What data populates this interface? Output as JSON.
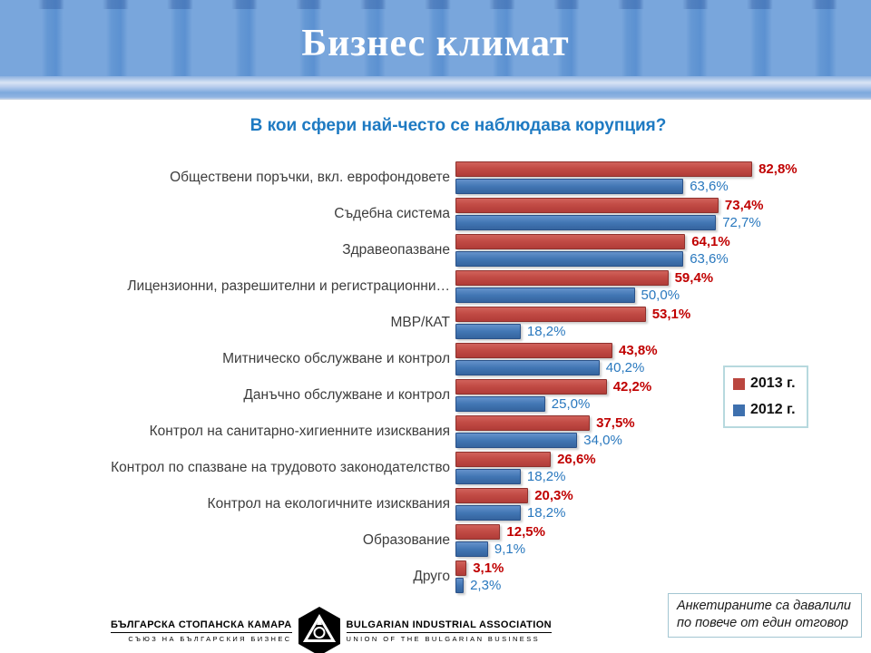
{
  "slide": {
    "title": "Бизнес климат"
  },
  "chart_data": {
    "type": "bar",
    "orientation": "horizontal",
    "title": "В кои сфери най-често се наблюдава корупция?",
    "xlabel": "",
    "ylabel": "",
    "xlim": [
      0,
      100
    ],
    "value_suffix": "%",
    "decimal_separator": ",",
    "grid": false,
    "legend_position": "right",
    "categories": [
      "Обществени поръчки, вкл. еврофондовете",
      "Съдебна система",
      "Здравеопазване",
      "Лицензионни, разрешителни и регистрационни…",
      "МВР/КАТ",
      "Митническо обслужване и контрол",
      "Данъчно обслужване и контрол",
      "Контрол на санитарно-хигиенните изисквания",
      "Контрол по спазване на трудовото законодателство",
      "Контрол на екологичните изисквания",
      "Образование",
      "Друго"
    ],
    "series": [
      {
        "name": "2013 г.",
        "color": "#c0504d",
        "label_color": "#c00000",
        "values": [
          82.8,
          73.4,
          64.1,
          59.4,
          53.1,
          43.8,
          42.2,
          37.5,
          26.6,
          20.3,
          12.5,
          3.1
        ],
        "value_labels": [
          "82,8%",
          "73,4%",
          "64,1%",
          "59,4%",
          "53,1%",
          "43,8%",
          "42,2%",
          "37,5%",
          "26,6%",
          "20,3%",
          "12,5%",
          "3,1%"
        ]
      },
      {
        "name": "2012 г.",
        "color": "#4f81bd",
        "label_color": "#2978be",
        "values": [
          63.6,
          72.7,
          63.6,
          50.0,
          18.2,
          40.2,
          25.0,
          34.0,
          18.2,
          18.2,
          9.1,
          2.3
        ],
        "value_labels": [
          "63,6%",
          "72,7%",
          "63,6%",
          "50,0%",
          "18,2%",
          "40,2%",
          "25,0%",
          "34,0%",
          "18,2%",
          "18,2%",
          "9,1%",
          "2,3%"
        ]
      }
    ]
  },
  "note": {
    "line1": "Анкетираните са давалили",
    "line2": "по повече от един отговор"
  },
  "footer": {
    "left_title": "БЪЛГАРСКА СТОПАНСКА КАМАРА",
    "left_subtitle": "СЪЮЗ НА БЪЛГАРСКИЯ БИЗНЕС",
    "right_title": "BULGARIAN INDUSTRIAL ASSOCIATION",
    "right_subtitle": "UNION OF THE BULGARIAN BUSINESS",
    "logo_icon": "hexagon-figure-icon"
  },
  "colors": {
    "header_stripe_light": "#79a6dc",
    "header_stripe_dark": "#5c91d1",
    "chart_title_blue": "#1e7ac2",
    "series_2013_red": "#c0504d",
    "series_2012_blue": "#4f81bd",
    "label_red": "#c00000",
    "label_blue": "#2978be",
    "legend_border": "#b7d9de",
    "note_border": "#a3c6d2"
  }
}
